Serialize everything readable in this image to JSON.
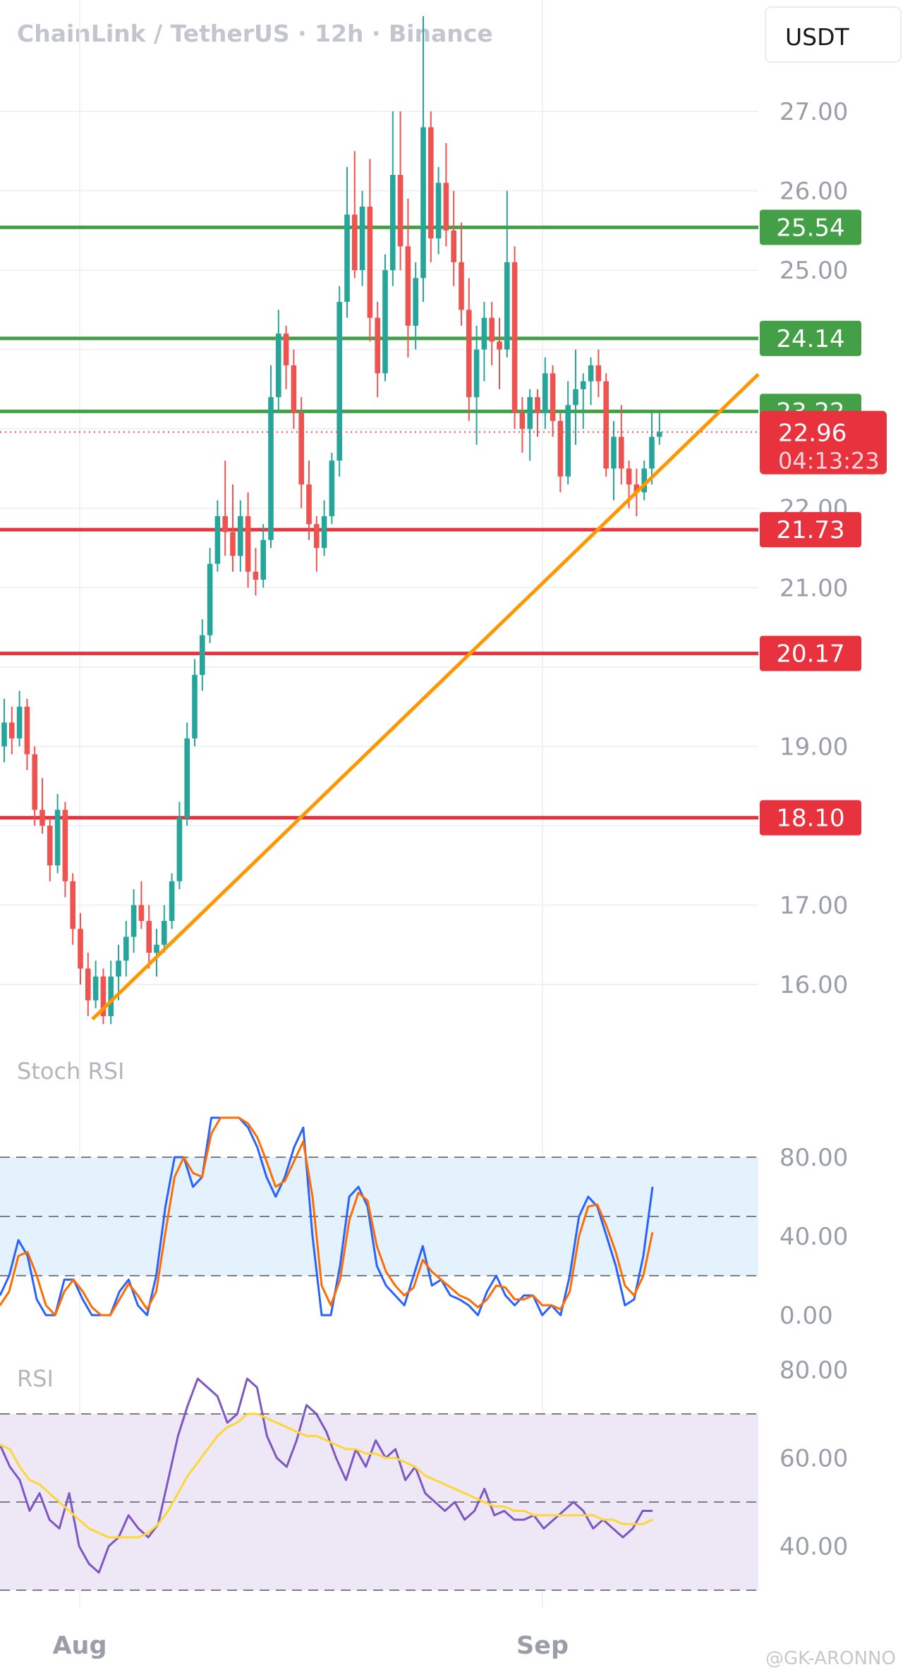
{
  "header": {
    "title": "ChainLink / TetherUS · 12h · Binance",
    "quote_currency": "USDT"
  },
  "watermark": "@GK-ARONNO",
  "colors": {
    "up": "#26a69a",
    "down": "#ef5350",
    "support": "#e8333f",
    "resistance": "#43a047",
    "trendline": "#ff9800",
    "stoch_k": "#2962ff",
    "stoch_d": "#ff6d00",
    "rsi": "#7e57c2",
    "rsi_ma": "#fdd835"
  },
  "chart_data": [
    {
      "type": "candlestick",
      "title": "ChainLink / TetherUS · 12h · Binance",
      "ylim": [
        15.4,
        28.2
      ],
      "y_ticks": [
        "16.00",
        "17.00",
        "19.00",
        "21.00",
        "22.00",
        "25.00",
        "26.00",
        "27.00"
      ],
      "x_ticks": [
        "Aug",
        "Sep"
      ],
      "price_tag": {
        "value": "22.96",
        "countdown": "04:13:23"
      },
      "horizontal_levels": [
        {
          "value": "25.54",
          "kind": "resistance"
        },
        {
          "value": "24.14",
          "kind": "resistance"
        },
        {
          "value": "23.22",
          "kind": "resistance"
        },
        {
          "value": "21.73",
          "kind": "support"
        },
        {
          "value": "20.17",
          "kind": "support"
        },
        {
          "value": "18.10",
          "kind": "support"
        }
      ],
      "trendline": {
        "from": [
          0,
          15.5
        ],
        "to": [
          68,
          23.6
        ]
      },
      "candles": [
        [
          19.0,
          19.6,
          18.8,
          19.3
        ],
        [
          19.3,
          19.5,
          18.9,
          19.1
        ],
        [
          19.1,
          19.7,
          19.0,
          19.5
        ],
        [
          19.5,
          19.6,
          18.7,
          18.9
        ],
        [
          18.9,
          19.0,
          18.0,
          18.2
        ],
        [
          18.2,
          18.6,
          17.9,
          18.0
        ],
        [
          18.0,
          18.1,
          17.3,
          17.5
        ],
        [
          17.5,
          18.4,
          17.4,
          18.2
        ],
        [
          18.2,
          18.3,
          17.1,
          17.3
        ],
        [
          17.3,
          17.4,
          16.5,
          16.7
        ],
        [
          16.7,
          16.9,
          16.0,
          16.2
        ],
        [
          16.2,
          16.4,
          15.6,
          15.8
        ],
        [
          15.8,
          16.3,
          15.7,
          16.1
        ],
        [
          16.1,
          16.2,
          15.5,
          15.6
        ],
        [
          15.6,
          16.3,
          15.5,
          16.1
        ],
        [
          16.1,
          16.5,
          15.8,
          16.3
        ],
        [
          16.3,
          16.8,
          16.1,
          16.6
        ],
        [
          16.6,
          17.2,
          16.4,
          17.0
        ],
        [
          17.0,
          17.3,
          16.7,
          16.8
        ],
        [
          16.8,
          17.0,
          16.2,
          16.4
        ],
        [
          16.4,
          16.7,
          16.1,
          16.5
        ],
        [
          16.5,
          17.0,
          16.4,
          16.8
        ],
        [
          16.8,
          17.4,
          16.7,
          17.3
        ],
        [
          17.3,
          18.3,
          17.2,
          18.1
        ],
        [
          18.1,
          19.3,
          18.0,
          19.1
        ],
        [
          19.1,
          20.1,
          19.0,
          19.9
        ],
        [
          19.9,
          20.6,
          19.7,
          20.4
        ],
        [
          20.4,
          21.5,
          20.3,
          21.3
        ],
        [
          21.3,
          22.1,
          21.2,
          21.9
        ],
        [
          21.9,
          22.6,
          21.4,
          21.7
        ],
        [
          21.7,
          22.3,
          21.2,
          21.4
        ],
        [
          21.4,
          22.1,
          21.2,
          21.9
        ],
        [
          21.9,
          22.2,
          21.0,
          21.2
        ],
        [
          21.2,
          21.5,
          20.9,
          21.1
        ],
        [
          21.1,
          21.8,
          21.0,
          21.6
        ],
        [
          21.6,
          23.8,
          21.5,
          23.4
        ],
        [
          23.4,
          24.5,
          23.2,
          24.2
        ],
        [
          24.2,
          24.3,
          23.5,
          23.8
        ],
        [
          23.8,
          24.0,
          23.0,
          23.2
        ],
        [
          23.2,
          23.4,
          22.0,
          22.3
        ],
        [
          22.3,
          22.6,
          21.6,
          21.8
        ],
        [
          21.8,
          21.9,
          21.2,
          21.5
        ],
        [
          21.5,
          22.1,
          21.4,
          21.9
        ],
        [
          21.9,
          22.7,
          21.8,
          22.6
        ],
        [
          22.6,
          24.8,
          22.4,
          24.6
        ],
        [
          24.6,
          26.3,
          24.4,
          25.7
        ],
        [
          25.7,
          26.5,
          24.9,
          25.0
        ],
        [
          25.0,
          26.0,
          24.8,
          25.8
        ],
        [
          25.8,
          26.4,
          24.1,
          24.4
        ],
        [
          24.4,
          24.6,
          23.4,
          23.7
        ],
        [
          23.7,
          25.2,
          23.6,
          25.0
        ],
        [
          25.0,
          27.0,
          24.8,
          26.2
        ],
        [
          26.2,
          27.0,
          25.0,
          25.3
        ],
        [
          25.3,
          25.9,
          23.9,
          24.3
        ],
        [
          24.3,
          25.1,
          24.0,
          24.9
        ],
        [
          24.9,
          28.2,
          24.6,
          26.8
        ],
        [
          26.8,
          27.0,
          25.1,
          25.4
        ],
        [
          25.4,
          26.3,
          25.2,
          26.1
        ],
        [
          26.1,
          26.6,
          25.3,
          25.5
        ],
        [
          25.5,
          26.0,
          24.8,
          25.1
        ],
        [
          25.1,
          25.6,
          24.3,
          24.5
        ],
        [
          24.5,
          24.9,
          23.1,
          23.4
        ],
        [
          23.4,
          24.3,
          22.8,
          24.0
        ],
        [
          24.0,
          24.6,
          23.6,
          24.4
        ],
        [
          24.4,
          24.6,
          23.8,
          24.1
        ],
        [
          24.1,
          24.4,
          23.5,
          24.0
        ],
        [
          24.0,
          26.0,
          23.9,
          25.1
        ],
        [
          25.1,
          25.3,
          23.0,
          23.2
        ],
        [
          23.2,
          23.4,
          22.7,
          23.0
        ],
        [
          23.0,
          23.5,
          22.6,
          23.4
        ],
        [
          23.4,
          23.5,
          22.9,
          23.2
        ],
        [
          23.2,
          23.9,
          23.0,
          23.7
        ],
        [
          23.7,
          23.8,
          22.9,
          23.1
        ],
        [
          23.1,
          23.2,
          22.2,
          22.4
        ],
        [
          22.4,
          23.6,
          22.3,
          23.3
        ],
        [
          23.3,
          24.0,
          22.8,
          23.5
        ],
        [
          23.5,
          23.7,
          23.0,
          23.6
        ],
        [
          23.6,
          23.9,
          23.3,
          23.8
        ],
        [
          23.8,
          24.0,
          23.4,
          23.6
        ],
        [
          23.6,
          23.7,
          22.4,
          22.5
        ],
        [
          22.5,
          23.1,
          22.1,
          22.9
        ],
        [
          22.9,
          23.3,
          22.3,
          22.5
        ],
        [
          22.5,
          22.6,
          22.0,
          22.3
        ],
        [
          22.3,
          22.5,
          21.9,
          22.2
        ],
        [
          22.2,
          22.6,
          22.1,
          22.5
        ],
        [
          22.5,
          23.2,
          22.3,
          22.9
        ],
        [
          22.9,
          23.2,
          22.8,
          22.96
        ]
      ]
    },
    {
      "type": "line",
      "title": "Stoch RSI",
      "ylim": [
        0,
        100
      ],
      "y_ticks": [
        "80.00",
        "40.00",
        "0.00"
      ],
      "bands": [
        20,
        50,
        80
      ],
      "series": [
        {
          "values": [
            10,
            20,
            38,
            30,
            8,
            0,
            0,
            18,
            18,
            8,
            0,
            0,
            0,
            12,
            18,
            5,
            0,
            20,
            55,
            80,
            80,
            65,
            70,
            100,
            100,
            100,
            100,
            95,
            85,
            70,
            60,
            70,
            85,
            95,
            40,
            0,
            0,
            25,
            60,
            65,
            55,
            25,
            15,
            10,
            5,
            20,
            35,
            15,
            18,
            10,
            8,
            5,
            0,
            12,
            20,
            10,
            5,
            10,
            10,
            0,
            5,
            0,
            20,
            50,
            60,
            55,
            40,
            25,
            5,
            8,
            30,
            65
          ]
        },
        {
          "values": [
            5,
            12,
            30,
            32,
            20,
            5,
            0,
            12,
            18,
            12,
            4,
            0,
            0,
            8,
            16,
            10,
            3,
            12,
            42,
            70,
            80,
            72,
            70,
            92,
            100,
            100,
            100,
            97,
            90,
            78,
            65,
            68,
            78,
            88,
            60,
            15,
            5,
            18,
            48,
            62,
            58,
            35,
            22,
            15,
            10,
            14,
            28,
            22,
            18,
            14,
            10,
            8,
            4,
            8,
            15,
            14,
            8,
            8,
            10,
            5,
            5,
            3,
            12,
            40,
            55,
            56,
            45,
            32,
            15,
            10,
            20,
            42
          ]
        }
      ]
    },
    {
      "type": "line",
      "title": "RSI",
      "ylim": [
        30,
        82
      ],
      "y_ticks": [
        "80.00",
        "60.00",
        "40.00"
      ],
      "bands": [
        30,
        50,
        70
      ],
      "series": [
        {
          "values": [
            63,
            58,
            55,
            48,
            52,
            46,
            44,
            52,
            40,
            36,
            34,
            40,
            42,
            47,
            44,
            42,
            45,
            55,
            65,
            72,
            78,
            76,
            74,
            68,
            70,
            78,
            76,
            65,
            60,
            58,
            64,
            72,
            70,
            66,
            60,
            55,
            62,
            58,
            64,
            60,
            62,
            55,
            58,
            52,
            50,
            48,
            50,
            46,
            48,
            53,
            47,
            48,
            46,
            46,
            47,
            44,
            46,
            48,
            50,
            48,
            44,
            46,
            44,
            42,
            44,
            48,
            48
          ]
        },
        {
          "values": [
            63,
            62,
            58,
            55,
            54,
            52,
            50,
            48,
            46,
            44,
            43,
            42,
            42,
            42,
            42,
            43,
            45,
            48,
            52,
            56,
            59,
            62,
            65,
            67,
            68,
            70,
            70,
            69,
            68,
            67,
            66,
            65,
            65,
            64,
            63,
            62,
            62,
            61,
            61,
            60,
            60,
            59,
            58,
            56,
            55,
            54,
            53,
            52,
            51,
            50,
            49,
            49,
            48,
            48,
            47,
            47,
            47,
            47,
            47,
            47,
            47,
            46,
            46,
            45,
            45,
            45,
            46
          ]
        }
      ]
    }
  ]
}
